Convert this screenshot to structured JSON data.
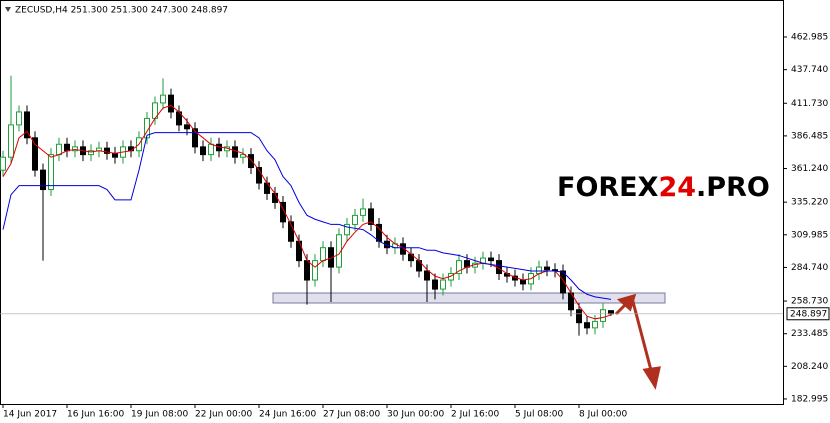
{
  "chart_data": {
    "type": "candlestick",
    "title": "ZECUSD,H4  251.300 251.300 247.300 248.897",
    "watermark": {
      "part1": "FOREX",
      "part2": "24",
      "part3": ".PRO"
    },
    "up_color": "#1f9e3a",
    "down_color": "#000000",
    "x": [
      0,
      2,
      4,
      6,
      8,
      10,
      12,
      14,
      16,
      18,
      20,
      22,
      24,
      26,
      28,
      30,
      32,
      34,
      36,
      38,
      40,
      42,
      44,
      46,
      48,
      50,
      52,
      54,
      56,
      58,
      60,
      62,
      64,
      66,
      68,
      70,
      72,
      74,
      76,
      78,
      80,
      82,
      84,
      86,
      88,
      90,
      92,
      94,
      96,
      98,
      100,
      102,
      104,
      106,
      108,
      110,
      112,
      114,
      116,
      118,
      120,
      122,
      124,
      126,
      128,
      130,
      132,
      134,
      136,
      138,
      140,
      142,
      144,
      146,
      148,
      150,
      152
    ],
    "open": [
      360,
      370,
      395,
      405,
      385,
      360,
      345,
      372,
      380,
      375,
      378,
      372,
      375,
      377,
      373,
      370,
      378,
      375,
      385,
      400,
      412,
      418,
      405,
      395,
      392,
      378,
      372,
      380,
      375,
      378,
      370,
      372,
      362,
      350,
      342,
      335,
      320,
      305,
      290,
      275,
      290,
      300,
      285,
      310,
      318,
      325,
      330,
      318,
      305,
      300,
      303,
      295,
      290,
      282,
      275,
      268,
      275,
      280,
      290,
      285,
      288,
      292,
      290,
      280,
      278,
      275,
      272,
      280,
      285,
      283,
      282,
      265,
      252,
      242,
      238,
      243,
      251.3
    ],
    "high": [
      375,
      433,
      410,
      410,
      390,
      365,
      377,
      385,
      385,
      383,
      383,
      380,
      382,
      382,
      378,
      383,
      383,
      390,
      405,
      417,
      431,
      423,
      410,
      400,
      397,
      383,
      385,
      385,
      383,
      383,
      377,
      377,
      367,
      355,
      347,
      340,
      325,
      310,
      295,
      295,
      305,
      305,
      315,
      323,
      330,
      338,
      335,
      323,
      310,
      308,
      308,
      300,
      295,
      287,
      280,
      280,
      285,
      295,
      295,
      293,
      297,
      297,
      295,
      285,
      283,
      280,
      285,
      290,
      290,
      288,
      287,
      270,
      257,
      247,
      248,
      257,
      251.3
    ],
    "low": [
      355,
      365,
      390,
      380,
      355,
      290,
      340,
      367,
      370,
      370,
      367,
      367,
      370,
      368,
      365,
      365,
      370,
      370,
      380,
      395,
      407,
      400,
      390,
      387,
      373,
      367,
      367,
      370,
      370,
      365,
      365,
      357,
      345,
      337,
      330,
      315,
      300,
      285,
      256,
      270,
      285,
      258,
      280,
      305,
      313,
      320,
      313,
      300,
      295,
      295,
      290,
      285,
      277,
      258,
      260,
      263,
      270,
      275,
      280,
      280,
      283,
      285,
      275,
      273,
      270,
      267,
      267,
      275,
      278,
      277,
      260,
      247,
      232,
      233,
      233,
      238,
      247.3
    ],
    "close": [
      370,
      395,
      405,
      385,
      360,
      345,
      372,
      380,
      375,
      378,
      372,
      375,
      377,
      373,
      370,
      378,
      375,
      385,
      400,
      412,
      418,
      405,
      395,
      392,
      378,
      372,
      380,
      375,
      378,
      370,
      372,
      362,
      350,
      342,
      335,
      320,
      305,
      290,
      275,
      290,
      300,
      285,
      310,
      318,
      325,
      330,
      318,
      305,
      300,
      303,
      295,
      290,
      282,
      275,
      268,
      275,
      280,
      290,
      285,
      288,
      292,
      290,
      280,
      278,
      275,
      272,
      280,
      285,
      283,
      282,
      265,
      252,
      242,
      238,
      243,
      252,
      248.897
    ],
    "series": [
      {
        "color": "#e00000",
        "values": [
          355,
          365,
          385,
          390,
          380,
          375,
          370,
          372,
          375,
          376,
          375,
          374,
          375,
          374,
          373,
          374,
          375,
          380,
          390,
          400,
          408,
          410,
          405,
          398,
          390,
          385,
          380,
          378,
          377,
          375,
          373,
          368,
          360,
          350,
          342,
          330,
          318,
          305,
          290,
          285,
          290,
          292,
          295,
          305,
          312,
          318,
          320,
          315,
          308,
          303,
          300,
          295,
          290,
          283,
          278,
          276,
          278,
          282,
          285,
          287,
          288,
          287,
          284,
          280,
          277,
          275,
          276,
          280,
          282,
          282,
          275,
          265,
          255,
          247,
          245,
          246,
          248
        ]
      },
      {
        "color": "#0000e0",
        "values": [
          314,
          341,
          348,
          348,
          348,
          348,
          348,
          348,
          348,
          348,
          348,
          348,
          348,
          345,
          337,
          337,
          337,
          360,
          387,
          389,
          389,
          389,
          389,
          389,
          389,
          389,
          389,
          389,
          389,
          389,
          389,
          389,
          385,
          375,
          368,
          355,
          348,
          335,
          325,
          322,
          320,
          318,
          318,
          316,
          315,
          314,
          310,
          305,
          302,
          300,
          300,
          300,
          300,
          298,
          298,
          296,
          295,
          294,
          292,
          290,
          288,
          287,
          286,
          285,
          284,
          283,
          282,
          282,
          282,
          282,
          281,
          275,
          268,
          264,
          262,
          261,
          260
        ]
      }
    ],
    "current_price": 248.897,
    "xlim": [
      -0.75,
      195
    ],
    "ylim": [
      179.1,
      491.6
    ],
    "xticks": [
      {
        "value": 0,
        "label": "14 Jun 2017"
      },
      {
        "value": 16,
        "label": "16 Jun 16:00"
      },
      {
        "value": 32,
        "label": "19 Jun 08:00"
      },
      {
        "value": 48,
        "label": "22 Jun 00:00"
      },
      {
        "value": 64,
        "label": "24 Jun 16:00"
      },
      {
        "value": 80,
        "label": "27 Jun 08:00"
      },
      {
        "value": 96,
        "label": "30 Jun 00:00"
      },
      {
        "value": 112,
        "label": "2 Jul 16:00"
      },
      {
        "value": 128,
        "label": "5 Jul 08:00"
      },
      {
        "value": 144,
        "label": "8 Jul 00:00"
      }
    ],
    "yticks": [
      462.985,
      {
        "value": 437.74,
        "label": "437.740"
      },
      {
        "value": 411.73,
        "label": "411.730"
      },
      386.485,
      {
        "value": 361.24,
        "label": "361.240"
      },
      {
        "value": 335.22,
        "label": "335.220"
      },
      309.985,
      {
        "value": 284.74,
        "label": "284.740"
      },
      {
        "value": 258.73,
        "label": "258.730"
      },
      233.485,
      {
        "value": 208.24,
        "label": "208.240"
      },
      182.995
    ],
    "grid": false
  }
}
